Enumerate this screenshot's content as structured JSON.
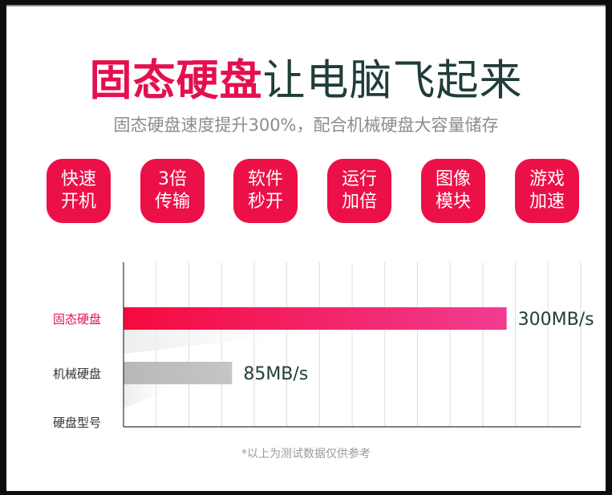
{
  "header": {
    "title_highlight": "固态硬盘",
    "title_rest": "让电脑飞起来",
    "subtitle": "固态硬盘速度提升300%，配合机械硬盘大容量储存"
  },
  "features": [
    {
      "line1": "快速",
      "line2": "开机"
    },
    {
      "line1": "3倍",
      "line2": "传输"
    },
    {
      "line1": "软件",
      "line2": "秒开"
    },
    {
      "line1": "运行",
      "line2": "加倍"
    },
    {
      "line1": "图像",
      "line2": "模块"
    },
    {
      "line1": "游戏",
      "line2": "加速"
    }
  ],
  "chart_data": {
    "type": "bar",
    "orientation": "horizontal",
    "categories": [
      "固态硬盘",
      "机械硬盘",
      "硬盘型号"
    ],
    "values": [
      300,
      85,
      null
    ],
    "value_labels": [
      "300MB/s",
      "85MB/s",
      ""
    ],
    "xlim": [
      0,
      358
    ],
    "grid": true,
    "colors": [
      "#ec1048",
      "#c0bfc0"
    ],
    "category_label_colors": [
      "#e4104e",
      "#333333",
      "#333333"
    ]
  },
  "footnote": "*以上为测试数据仅供参考"
}
